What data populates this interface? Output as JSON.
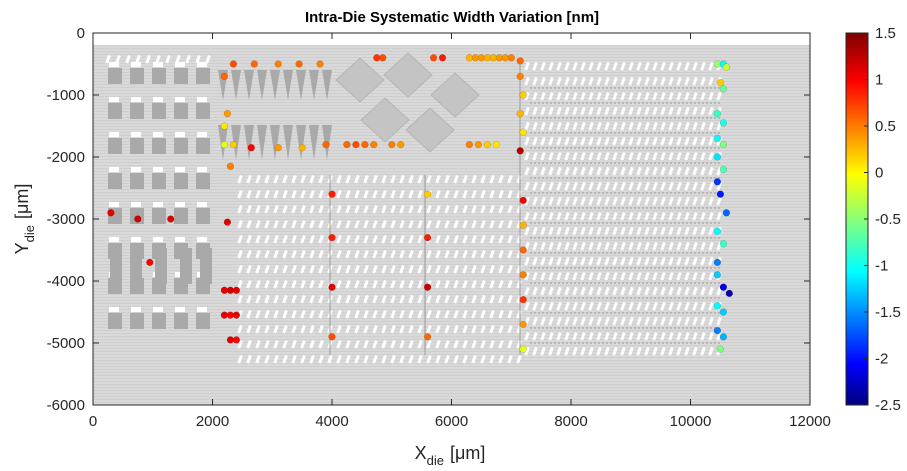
{
  "chart_data": {
    "type": "scatter",
    "title": "Intra-Die Systematic Width Variation [nm]",
    "xlabel": {
      "main": "X",
      "sub": "die",
      "unit": "[μm]"
    },
    "ylabel": {
      "main": "Y",
      "sub": "die",
      "unit": "[μm]"
    },
    "xlim": [
      0,
      12000
    ],
    "ylim": [
      -6000,
      0
    ],
    "xticks": [
      0,
      2000,
      4000,
      6000,
      8000,
      10000,
      12000
    ],
    "xtick_labels": [
      "0",
      "2000",
      "4000",
      "6000",
      "8000",
      "10000",
      "12000"
    ],
    "yticks": [
      0,
      -1000,
      -2000,
      -3000,
      -4000,
      -5000,
      -6000
    ],
    "ytick_labels": [
      "0",
      "-1000",
      "-2000",
      "-3000",
      "-4000",
      "-5000",
      "-6000"
    ],
    "die_extent": {
      "x": [
        0,
        12000
      ],
      "y": [
        -6000,
        -200
      ]
    },
    "colorbar": {
      "colormap": "jet",
      "lim": [
        -2.5,
        1.5
      ],
      "ticks": [
        1.5,
        1,
        0.5,
        0,
        -0.5,
        -1,
        -1.5,
        -2,
        -2.5
      ],
      "tick_labels": [
        "1.5",
        "1",
        "0.5",
        "0",
        "-0.5",
        "-1",
        "-1.5",
        "-2",
        "-2.5"
      ]
    },
    "grid": false,
    "points": [
      {
        "x": 2200,
        "y": -700,
        "v": 0.6
      },
      {
        "x": 2350,
        "y": -500,
        "v": 0.7
      },
      {
        "x": 2700,
        "y": -500,
        "v": 0.6
      },
      {
        "x": 3100,
        "y": -500,
        "v": 0.5
      },
      {
        "x": 3450,
        "y": -500,
        "v": 0.6
      },
      {
        "x": 3800,
        "y": -500,
        "v": 0.5
      },
      {
        "x": 2250,
        "y": -1300,
        "v": 0.4
      },
      {
        "x": 2200,
        "y": -1500,
        "v": 0.1
      },
      {
        "x": 2200,
        "y": -1800,
        "v": -0.1
      },
      {
        "x": 2350,
        "y": -1800,
        "v": 0.2
      },
      {
        "x": 2650,
        "y": -1850,
        "v": 1.0
      },
      {
        "x": 3100,
        "y": -1850,
        "v": 0.4
      },
      {
        "x": 3500,
        "y": -1850,
        "v": 0.3
      },
      {
        "x": 3900,
        "y": -1800,
        "v": 0.6
      },
      {
        "x": 2300,
        "y": -2150,
        "v": 0.5
      },
      {
        "x": 4750,
        "y": -400,
        "v": 0.8
      },
      {
        "x": 4850,
        "y": -400,
        "v": 0.7
      },
      {
        "x": 5700,
        "y": -400,
        "v": 0.7
      },
      {
        "x": 5850,
        "y": -400,
        "v": 0.9
      },
      {
        "x": 6300,
        "y": -400,
        "v": 0.3
      },
      {
        "x": 6400,
        "y": -400,
        "v": 0.4
      },
      {
        "x": 6500,
        "y": -400,
        "v": 0.4
      },
      {
        "x": 6600,
        "y": -400,
        "v": 0.3
      },
      {
        "x": 6700,
        "y": -400,
        "v": 0.3
      },
      {
        "x": 6800,
        "y": -400,
        "v": 0.4
      },
      {
        "x": 6900,
        "y": -400,
        "v": 0.4
      },
      {
        "x": 7000,
        "y": -400,
        "v": 0.5
      },
      {
        "x": 4250,
        "y": -1800,
        "v": 0.6
      },
      {
        "x": 4400,
        "y": -1800,
        "v": 0.7
      },
      {
        "x": 4550,
        "y": -1800,
        "v": 0.6
      },
      {
        "x": 4700,
        "y": -1800,
        "v": 0.5
      },
      {
        "x": 5000,
        "y": -1800,
        "v": 0.5
      },
      {
        "x": 5150,
        "y": -1800,
        "v": 0.4
      },
      {
        "x": 6300,
        "y": -1800,
        "v": 0.5
      },
      {
        "x": 6450,
        "y": -1800,
        "v": 0.4
      },
      {
        "x": 6600,
        "y": -1800,
        "v": 0.2
      },
      {
        "x": 6750,
        "y": -1800,
        "v": 0.1
      },
      {
        "x": 7150,
        "y": -450,
        "v": 0.6
      },
      {
        "x": 7150,
        "y": -700,
        "v": 0.5
      },
      {
        "x": 7200,
        "y": -1000,
        "v": 0.2
      },
      {
        "x": 7150,
        "y": -1300,
        "v": 0.3
      },
      {
        "x": 7200,
        "y": -1600,
        "v": 0.1
      },
      {
        "x": 7150,
        "y": -1900,
        "v": 1.3
      },
      {
        "x": 7200,
        "y": -2700,
        "v": 1.0
      },
      {
        "x": 7200,
        "y": -3100,
        "v": 0.3
      },
      {
        "x": 7200,
        "y": -3500,
        "v": 0.6
      },
      {
        "x": 7200,
        "y": -3900,
        "v": 0.5
      },
      {
        "x": 7200,
        "y": -4300,
        "v": 0.8
      },
      {
        "x": 7200,
        "y": -4700,
        "v": 0.4
      },
      {
        "x": 7200,
        "y": -5100,
        "v": -0.1
      },
      {
        "x": 4000,
        "y": -2600,
        "v": 0.9
      },
      {
        "x": 4000,
        "y": -3300,
        "v": 0.9
      },
      {
        "x": 4000,
        "y": -4100,
        "v": 1.1
      },
      {
        "x": 4000,
        "y": -4900,
        "v": 0.7
      },
      {
        "x": 5600,
        "y": -2600,
        "v": 0.2
      },
      {
        "x": 5600,
        "y": -3300,
        "v": 0.9
      },
      {
        "x": 5600,
        "y": -4100,
        "v": 1.2
      },
      {
        "x": 5600,
        "y": -4900,
        "v": 0.6
      },
      {
        "x": 300,
        "y": -2900,
        "v": 1.1
      },
      {
        "x": 750,
        "y": -3000,
        "v": 1.2
      },
      {
        "x": 1300,
        "y": -3000,
        "v": 1.1
      },
      {
        "x": 2250,
        "y": -3050,
        "v": 1.1
      },
      {
        "x": 950,
        "y": -3700,
        "v": 1.0
      },
      {
        "x": 2200,
        "y": -4150,
        "v": 1.1
      },
      {
        "x": 2300,
        "y": -4150,
        "v": 1.2
      },
      {
        "x": 2400,
        "y": -4150,
        "v": 1.1
      },
      {
        "x": 2200,
        "y": -4550,
        "v": 1.1
      },
      {
        "x": 2300,
        "y": -4550,
        "v": 1.0
      },
      {
        "x": 2400,
        "y": -4550,
        "v": 1.1
      },
      {
        "x": 2300,
        "y": -4950,
        "v": 1.1
      },
      {
        "x": 2400,
        "y": -4950,
        "v": 1.0
      },
      {
        "x": 10450,
        "y": -500,
        "v": -0.4
      },
      {
        "x": 10550,
        "y": -500,
        "v": -1.0
      },
      {
        "x": 10600,
        "y": -550,
        "v": -0.2
      },
      {
        "x": 10500,
        "y": -800,
        "v": 0.2
      },
      {
        "x": 10550,
        "y": -900,
        "v": -0.6
      },
      {
        "x": 10450,
        "y": -1300,
        "v": -0.8
      },
      {
        "x": 10550,
        "y": -1450,
        "v": -0.9
      },
      {
        "x": 10450,
        "y": -1700,
        "v": -1.0
      },
      {
        "x": 10550,
        "y": -1800,
        "v": -0.5
      },
      {
        "x": 10450,
        "y": -2000,
        "v": -1.1
      },
      {
        "x": 10550,
        "y": -2200,
        "v": -0.7
      },
      {
        "x": 10450,
        "y": -2400,
        "v": -1.8
      },
      {
        "x": 10500,
        "y": -2600,
        "v": -1.9
      },
      {
        "x": 10600,
        "y": -2900,
        "v": -1.6
      },
      {
        "x": 10450,
        "y": -3200,
        "v": -1.0
      },
      {
        "x": 10550,
        "y": -3400,
        "v": -0.8
      },
      {
        "x": 10450,
        "y": -3700,
        "v": -1.5
      },
      {
        "x": 10450,
        "y": -3900,
        "v": -1.2
      },
      {
        "x": 10550,
        "y": -4100,
        "v": -2.1
      },
      {
        "x": 10450,
        "y": -4400,
        "v": -1.0
      },
      {
        "x": 10550,
        "y": -4500,
        "v": -1.2
      },
      {
        "x": 10450,
        "y": -4800,
        "v": -1.5
      },
      {
        "x": 10550,
        "y": -4900,
        "v": -1.3
      },
      {
        "x": 10500,
        "y": -5100,
        "v": -0.5
      },
      {
        "x": 10650,
        "y": -4200,
        "v": -2.3
      }
    ]
  }
}
